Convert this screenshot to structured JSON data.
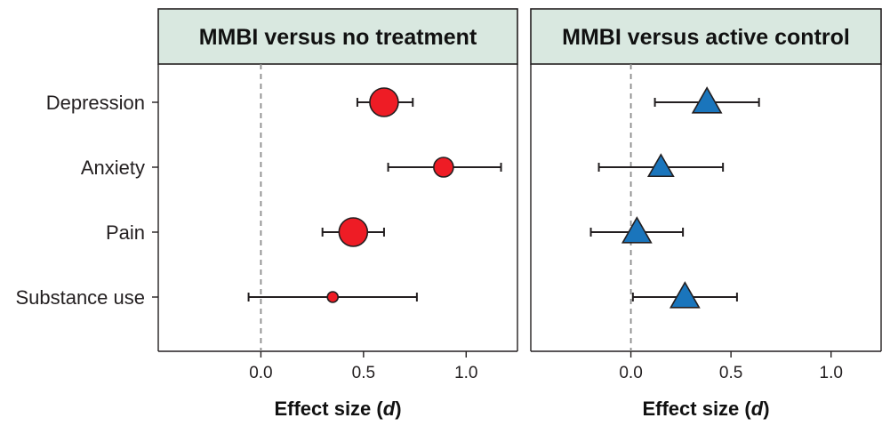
{
  "chart_data": [
    {
      "type": "scatter",
      "title": "MMBI versus no treatment",
      "xlabel": "Effect size (d)",
      "xlabel_parts": {
        "prefix": "Effect size (",
        "symbol": "d",
        "suffix": ")"
      },
      "xlim": [
        -0.5,
        1.25
      ],
      "xticks": [
        "0.0",
        "0.5",
        "1.0"
      ],
      "categories": [
        "Depression",
        "Anxiety",
        "Pain",
        "Substance use"
      ],
      "marker": "circle",
      "color": "#ee1c25",
      "points": [
        {
          "category": "Depression",
          "effect": 0.6,
          "ci_low": 0.47,
          "ci_high": 0.74,
          "weight": 16
        },
        {
          "category": "Anxiety",
          "effect": 0.89,
          "ci_low": 0.62,
          "ci_high": 1.17,
          "weight": 11
        },
        {
          "category": "Pain",
          "effect": 0.45,
          "ci_low": 0.3,
          "ci_high": 0.6,
          "weight": 16
        },
        {
          "category": "Substance use",
          "effect": 0.35,
          "ci_low": -0.06,
          "ci_high": 0.76,
          "weight": 6
        }
      ]
    },
    {
      "type": "scatter",
      "title": "MMBI versus active control",
      "xlabel": "Effect size (d)",
      "xlabel_parts": {
        "prefix": "Effect size (",
        "symbol": "d",
        "suffix": ")"
      },
      "xlim": [
        -0.5,
        1.25
      ],
      "xticks": [
        "0.0",
        "0.5",
        "1.0"
      ],
      "categories": [
        "Depression",
        "Anxiety",
        "Pain",
        "Substance use"
      ],
      "marker": "triangle",
      "color": "#1a75bc",
      "points": [
        {
          "category": "Depression",
          "effect": 0.38,
          "ci_low": 0.12,
          "ci_high": 0.64,
          "weight": 15
        },
        {
          "category": "Anxiety",
          "effect": 0.15,
          "ci_low": -0.16,
          "ci_high": 0.46,
          "weight": 13
        },
        {
          "category": "Pain",
          "effect": 0.03,
          "ci_low": -0.2,
          "ci_high": 0.26,
          "weight": 15
        },
        {
          "category": "Substance use",
          "effect": 0.27,
          "ci_low": 0.01,
          "ci_high": 0.53,
          "weight": 15
        }
      ]
    }
  ]
}
